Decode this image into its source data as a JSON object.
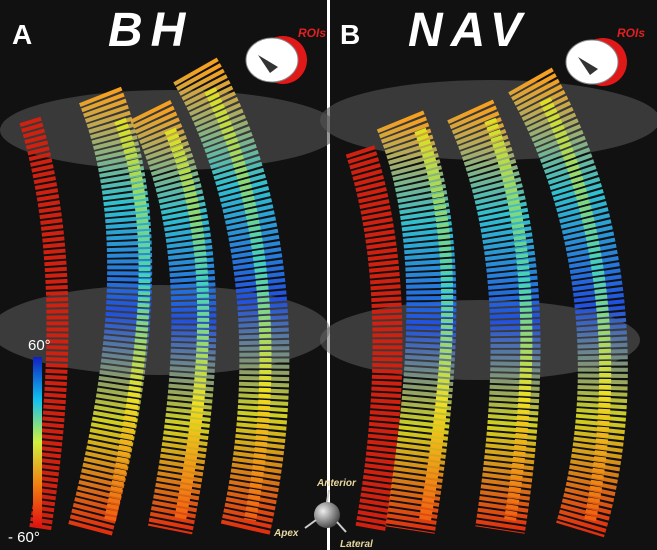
{
  "panels": [
    {
      "letter": "A",
      "title": "BH",
      "roi_label": "ROIs"
    },
    {
      "letter": "B",
      "title": "NAV",
      "roi_label": "ROIs"
    }
  ],
  "colorbar": {
    "max_label": "60°",
    "min_label": "- 60°"
  },
  "orientation": {
    "anterior": "Anterior",
    "apex": "Apex",
    "lateral": "Lateral"
  }
}
